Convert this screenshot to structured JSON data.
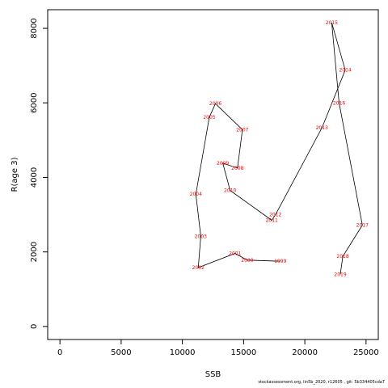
{
  "chart_data": {
    "type": "line",
    "title": "",
    "xlabel": "SSB",
    "ylabel": "R(age 3)",
    "xlim": [
      -1000,
      26000
    ],
    "ylim": [
      -350,
      8500
    ],
    "x_ticks": [
      0,
      5000,
      10000,
      15000,
      20000,
      25000
    ],
    "y_ticks": [
      0,
      2000,
      4000,
      6000,
      8000
    ],
    "grid": false,
    "series": [
      {
        "color": "#000000",
        "label_color": "#ff0000",
        "points": [
          {
            "label": "1999",
            "x": 18000,
            "y": 1750
          },
          {
            "label": "2000",
            "x": 15300,
            "y": 1780
          },
          {
            "label": "2001",
            "x": 14300,
            "y": 1960
          },
          {
            "label": "2002",
            "x": 11300,
            "y": 1580
          },
          {
            "label": "2003",
            "x": 11500,
            "y": 2420
          },
          {
            "label": "2004",
            "x": 11100,
            "y": 3550
          },
          {
            "label": "2005",
            "x": 12200,
            "y": 5620
          },
          {
            "label": "2006",
            "x": 12700,
            "y": 5980
          },
          {
            "label": "2007",
            "x": 14900,
            "y": 5280
          },
          {
            "label": "2008",
            "x": 14500,
            "y": 4250
          },
          {
            "label": "2009",
            "x": 13300,
            "y": 4380
          },
          {
            "label": "2010",
            "x": 13900,
            "y": 3650
          },
          {
            "label": "2011",
            "x": 17300,
            "y": 2850
          },
          {
            "label": "2012",
            "x": 17600,
            "y": 3000
          },
          {
            "label": "2013",
            "x": 21400,
            "y": 5330
          },
          {
            "label": "2014",
            "x": 23300,
            "y": 6880
          },
          {
            "label": "2015",
            "x": 22200,
            "y": 8150
          },
          {
            "label": "2016",
            "x": 22800,
            "y": 6000
          },
          {
            "label": "2017",
            "x": 24700,
            "y": 2720
          },
          {
            "label": "2018",
            "x": 23100,
            "y": 1880
          },
          {
            "label": "2019",
            "x": 22900,
            "y": 1400
          }
        ]
      }
    ]
  },
  "footer": {
    "text": "stockassessment.org,  lin5b_2020, r12605 ,  git: 5b334405cda7"
  }
}
